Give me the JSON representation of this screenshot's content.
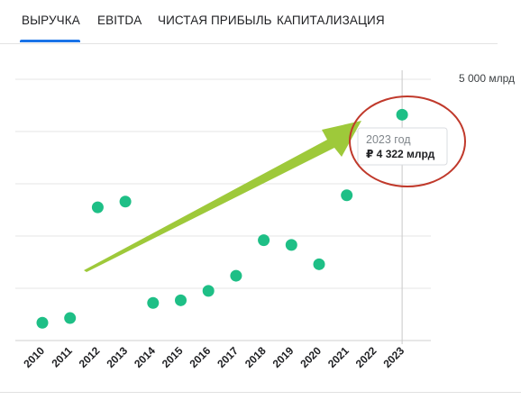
{
  "tabs": [
    {
      "label": "ВЫРУЧКА",
      "active": true
    },
    {
      "label": "EBITDA",
      "active": false
    },
    {
      "label": "ЧИСТАЯ ПРИБЫЛЬ",
      "active": false
    },
    {
      "label": "КАПИТАЛИЗАЦИЯ",
      "active": false
    }
  ],
  "colors": {
    "accent": "#1a73e8",
    "point": "#1ebf86",
    "arrow": "#9ec93a",
    "highlight_ring": "#c0392b"
  },
  "tooltip": {
    "year": "2023 год",
    "value": "₽ 4 322 млрд"
  },
  "chart_data": {
    "type": "scatter",
    "ylim": [
      0,
      5000
    ],
    "y_top_label": "5 000 млрд",
    "grid": true,
    "x": [
      "2010",
      "2011",
      "2012",
      "2013",
      "2014",
      "2015",
      "2016",
      "2017",
      "2018",
      "2019",
      "2020",
      "2021",
      "2022",
      "2023"
    ],
    "values": [
      340,
      430,
      2550,
      2660,
      720,
      770,
      950,
      1240,
      1920,
      1830,
      1460,
      2780,
      null,
      4322
    ]
  }
}
